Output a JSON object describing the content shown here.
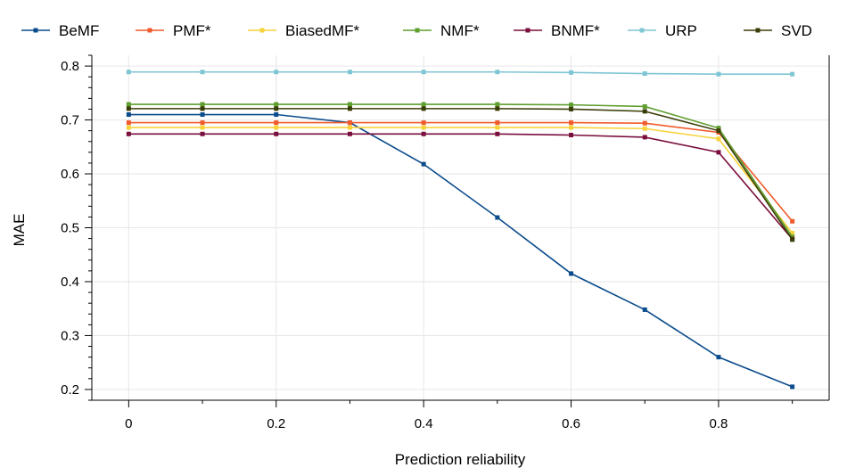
{
  "chart_data": {
    "type": "line",
    "xlabel": "Prediction reliability",
    "ylabel": "MAE",
    "xlim": [
      -0.05,
      0.95
    ],
    "ylim": [
      0.18,
      0.82
    ],
    "x_ticks": [
      0,
      0.2,
      0.4,
      0.6,
      0.8
    ],
    "x_tick_labels": [
      "0",
      "0.2",
      "0.4",
      "0.6",
      "0.8"
    ],
    "y_ticks": [
      0.2,
      0.3,
      0.4,
      0.5,
      0.6,
      0.7,
      0.8
    ],
    "y_tick_labels": [
      "0.2",
      "0.3",
      "0.4",
      "0.5",
      "0.6",
      "0.7",
      "0.8"
    ],
    "grid": true,
    "legend_position": "top",
    "x": [
      0,
      0.1,
      0.2,
      0.3,
      0.4,
      0.5,
      0.6,
      0.7,
      0.8,
      0.9
    ],
    "series": [
      {
        "name": "BeMF",
        "color": "#0b4c8c",
        "values": [
          0.71,
          0.71,
          0.71,
          0.695,
          0.618,
          0.519,
          0.415,
          0.348,
          0.26,
          0.205
        ]
      },
      {
        "name": "PMF*",
        "color": "#f05a2c",
        "values": [
          0.695,
          0.695,
          0.695,
          0.695,
          0.695,
          0.695,
          0.695,
          0.694,
          0.677,
          0.512
        ]
      },
      {
        "name": "BiasedMF*",
        "color": "#f7d23a",
        "values": [
          0.686,
          0.686,
          0.686,
          0.686,
          0.686,
          0.686,
          0.686,
          0.684,
          0.665,
          0.49
        ]
      },
      {
        "name": "NMF*",
        "color": "#5f9e2f",
        "values": [
          0.729,
          0.729,
          0.729,
          0.729,
          0.729,
          0.729,
          0.728,
          0.725,
          0.685,
          0.483
        ]
      },
      {
        "name": "BNMF*",
        "color": "#7a0e3c",
        "values": [
          0.674,
          0.674,
          0.674,
          0.674,
          0.674,
          0.674,
          0.672,
          0.668,
          0.64,
          0.479
        ]
      },
      {
        "name": "URP",
        "color": "#7fc6d4",
        "values": [
          0.789,
          0.789,
          0.789,
          0.789,
          0.789,
          0.789,
          0.788,
          0.786,
          0.785,
          0.785
        ]
      },
      {
        "name": "SVD",
        "color": "#3b3d08",
        "values": [
          0.721,
          0.721,
          0.721,
          0.721,
          0.721,
          0.721,
          0.72,
          0.716,
          0.68,
          0.478
        ]
      }
    ]
  }
}
